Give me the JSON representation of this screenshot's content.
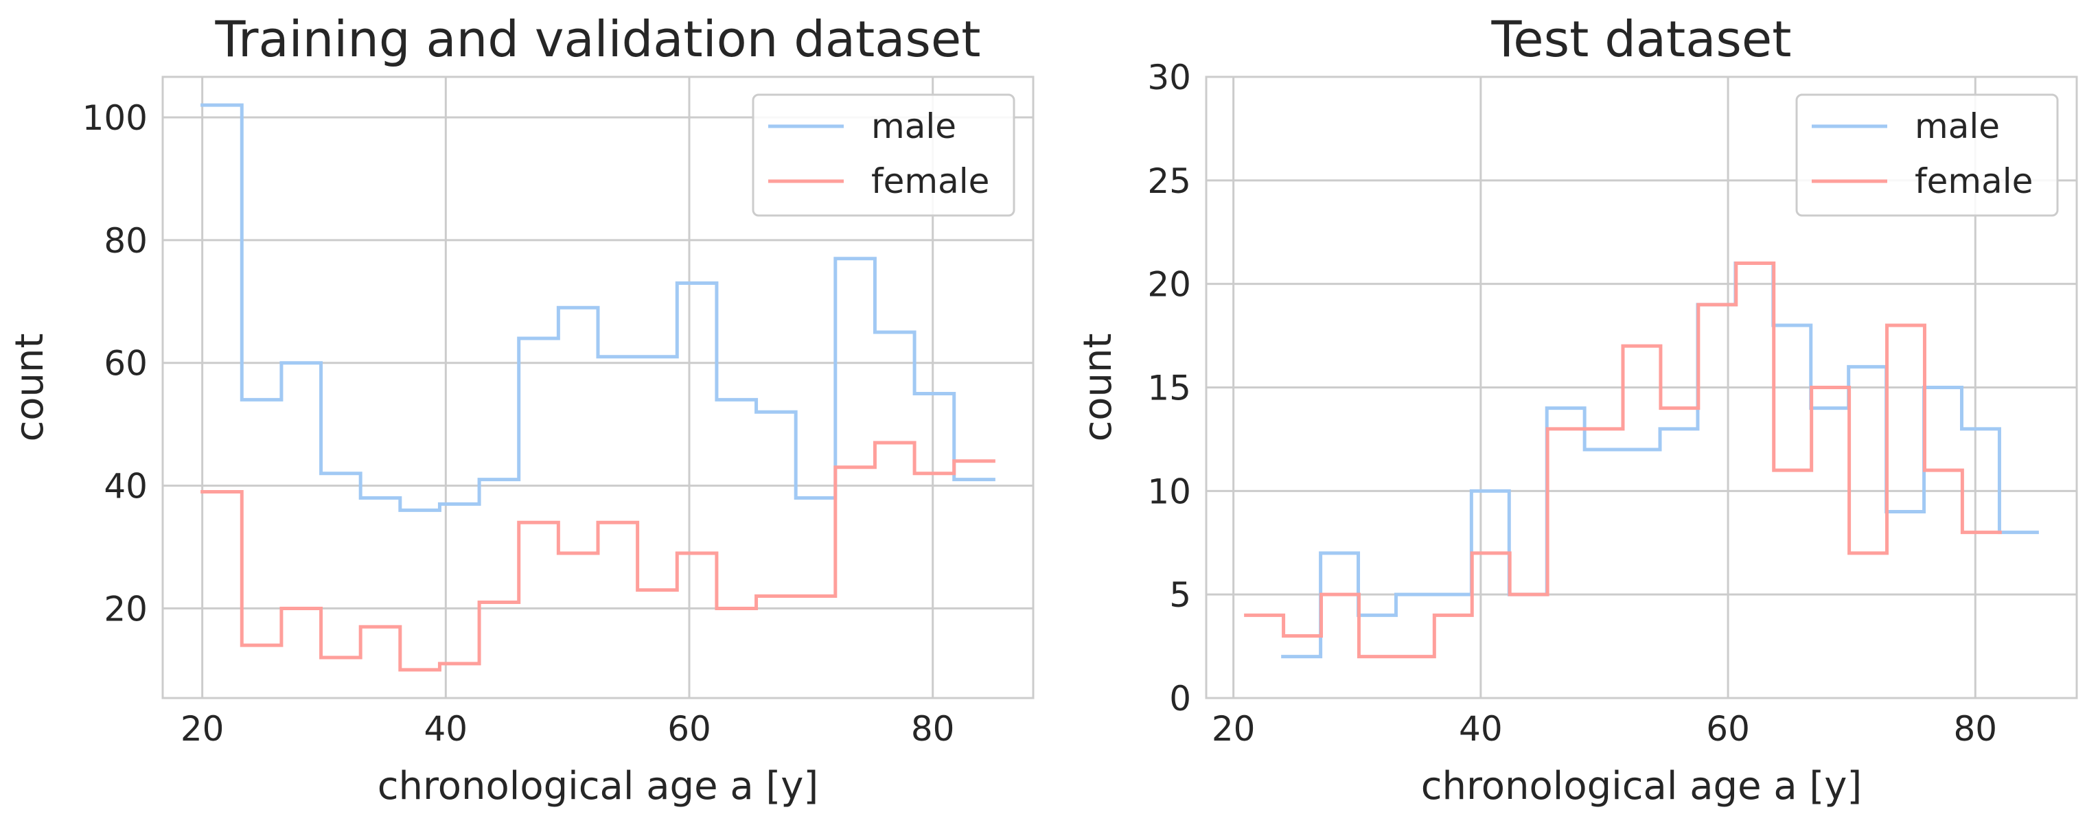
{
  "chart_data": [
    {
      "type": "line",
      "step": "post",
      "title": "Training and validation dataset",
      "xlabel": "chronological age a [y]",
      "ylabel": "count",
      "xlim": [
        16.75,
        88.25
      ],
      "ylim": [
        5.4,
        106.6
      ],
      "xticks": [
        20,
        40,
        60,
        80
      ],
      "yticks": [
        20,
        40,
        60,
        80,
        100
      ],
      "grid": true,
      "legend": "upper right",
      "series": [
        {
          "name": "male",
          "color": "#a1c9f4",
          "x": [
            20,
            23.25,
            26.5,
            29.75,
            33,
            36.25,
            39.5,
            42.75,
            46,
            49.25,
            52.5,
            55.75,
            59,
            62.25,
            65.5,
            68.75,
            72,
            75.25,
            78.5,
            81.75,
            85
          ],
          "values": [
            102,
            54,
            60,
            42,
            38,
            36,
            37,
            41,
            64,
            69,
            61,
            61,
            73,
            54,
            52,
            38,
            77,
            65,
            55,
            41,
            41
          ]
        },
        {
          "name": "female",
          "color": "#ff9f9b",
          "x": [
            20,
            23.25,
            26.5,
            29.75,
            33,
            36.25,
            39.5,
            42.75,
            46,
            49.25,
            52.5,
            55.75,
            59,
            62.25,
            65.5,
            68.75,
            72,
            75.25,
            78.5,
            81.75,
            85
          ],
          "values": [
            39,
            14,
            20,
            12,
            17,
            10,
            11,
            21,
            34,
            29,
            34,
            23,
            29,
            20,
            22,
            22,
            43,
            47,
            42,
            44,
            44
          ]
        }
      ]
    },
    {
      "type": "line",
      "step": "post",
      "title": "Test dataset",
      "xlabel": "chronological age a [y]",
      "ylabel": "count",
      "xlim": [
        17.8,
        88.2
      ],
      "ylim": [
        0,
        30
      ],
      "xticks": [
        20,
        40,
        60,
        80
      ],
      "yticks": [
        0,
        5,
        10,
        15,
        20,
        25,
        30
      ],
      "grid": true,
      "legend": "upper right",
      "series": [
        {
          "name": "male",
          "color": "#a1c9f4",
          "x": [
            24,
            27.05,
            30.1,
            33.15,
            36.2,
            39.25,
            42.3,
            45.35,
            48.4,
            51.45,
            54.5,
            57.55,
            60.6,
            63.65,
            66.7,
            69.75,
            72.8,
            75.85,
            78.9,
            81.95,
            85
          ],
          "values": [
            2,
            7,
            4,
            5,
            5,
            10,
            5,
            14,
            12,
            12,
            13,
            19,
            21,
            18,
            14,
            16,
            9,
            15,
            13,
            8,
            8
          ]
        },
        {
          "name": "female",
          "color": "#ff9f9b",
          "x": [
            21,
            24.05,
            27.1,
            30.15,
            33.2,
            36.25,
            39.3,
            42.35,
            45.4,
            48.45,
            51.5,
            54.55,
            57.6,
            60.65,
            63.7,
            66.75,
            69.8,
            72.85,
            75.9,
            78.95,
            82
          ],
          "values": [
            4,
            3,
            5,
            2,
            2,
            4,
            7,
            5,
            13,
            13,
            17,
            14,
            19,
            21,
            11,
            15,
            7,
            18,
            11,
            8,
            8
          ]
        }
      ]
    }
  ]
}
